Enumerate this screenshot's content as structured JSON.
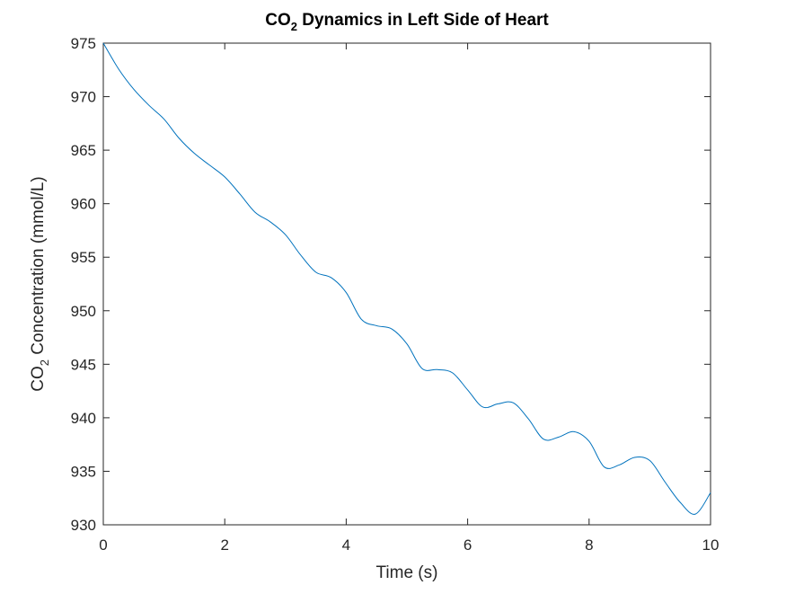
{
  "chart_data": {
    "type": "line",
    "title": {
      "main": "CO",
      "sub": "2",
      "rest": " Dynamics in Left Side of Heart"
    },
    "xlabel": "Time (s)",
    "ylabel": {
      "main": "CO",
      "sub": "2",
      "rest": " Concentration (mmol/L)"
    },
    "xlim": [
      0,
      10
    ],
    "ylim": [
      930,
      975
    ],
    "xticks": [
      "0",
      "2",
      "4",
      "6",
      "8",
      "10"
    ],
    "yticks": [
      "930",
      "935",
      "940",
      "945",
      "950",
      "955",
      "960",
      "965",
      "970",
      "975"
    ],
    "grid": false,
    "line_color": "#0072BD",
    "series": [
      {
        "x": [
          0,
          0.25,
          0.5,
          0.75,
          1.0,
          1.25,
          1.5,
          1.75,
          2.0,
          2.25,
          2.5,
          2.75,
          3.0,
          3.25,
          3.5,
          3.75,
          4.0,
          4.25,
          4.5,
          4.75,
          5.0,
          5.25,
          5.5,
          5.75,
          6.0,
          6.25,
          6.5,
          6.75,
          7.0,
          7.25,
          7.5,
          7.75,
          8.0,
          8.25,
          8.5,
          8.75,
          9.0,
          9.25,
          9.5,
          9.75,
          10.0
        ],
        "y": [
          975,
          972.6,
          970.7,
          969.2,
          967.9,
          966.1,
          964.7,
          963.6,
          962.5,
          960.9,
          959.2,
          958.3,
          957.1,
          955.2,
          953.6,
          953.1,
          951.7,
          949.2,
          948.6,
          948.3,
          946.9,
          944.6,
          944.5,
          944.2,
          942.6,
          941.0,
          941.3,
          941.4,
          939.9,
          938.0,
          938.2,
          938.7,
          937.8,
          935.4,
          935.6,
          936.3,
          936.0,
          934.0,
          932.1,
          931.0,
          933.0
        ]
      }
    ]
  }
}
